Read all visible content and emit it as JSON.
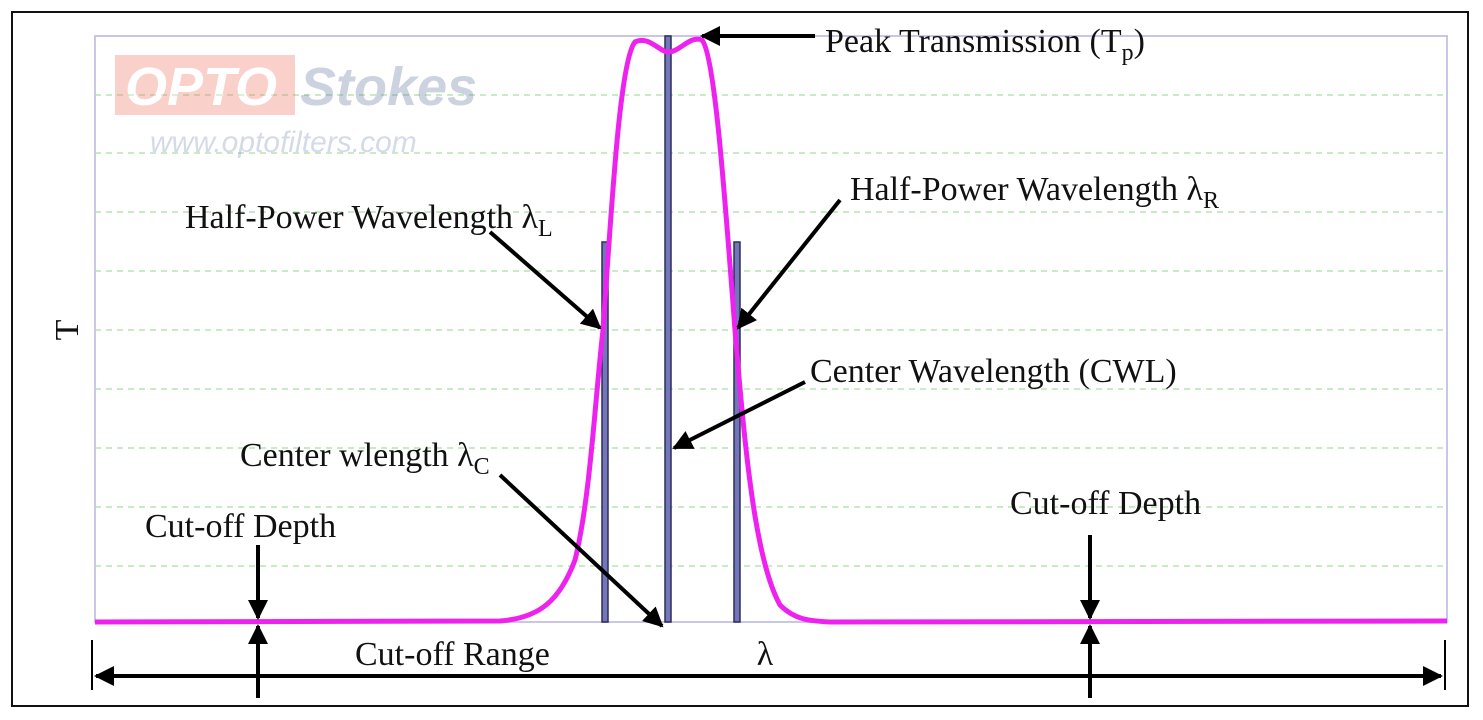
{
  "axis": {
    "y_label": "T",
    "x_label": "λ"
  },
  "watermark": {
    "brand_a": "OPTO",
    "brand_b": "Stokes",
    "url": "www.optofilters.com"
  },
  "annotations": {
    "peak": {
      "text": "Peak Transmission (T",
      "sub": "p",
      "end": ")"
    },
    "half_left": {
      "text": "Half-Power Wavelength λ",
      "sub": "L"
    },
    "half_right": {
      "text": "Half-Power Wavelength λ",
      "sub": "R"
    },
    "cwl": {
      "text": "Center Wavelength (CWL)"
    },
    "center": {
      "text": "Center wlength λ",
      "sub": "C"
    },
    "cutoff_left": {
      "text": "Cut-off Depth"
    },
    "cutoff_right": {
      "text": "Cut-off Depth"
    },
    "cutoff_range": {
      "text": "Cut-off Range"
    }
  }
}
